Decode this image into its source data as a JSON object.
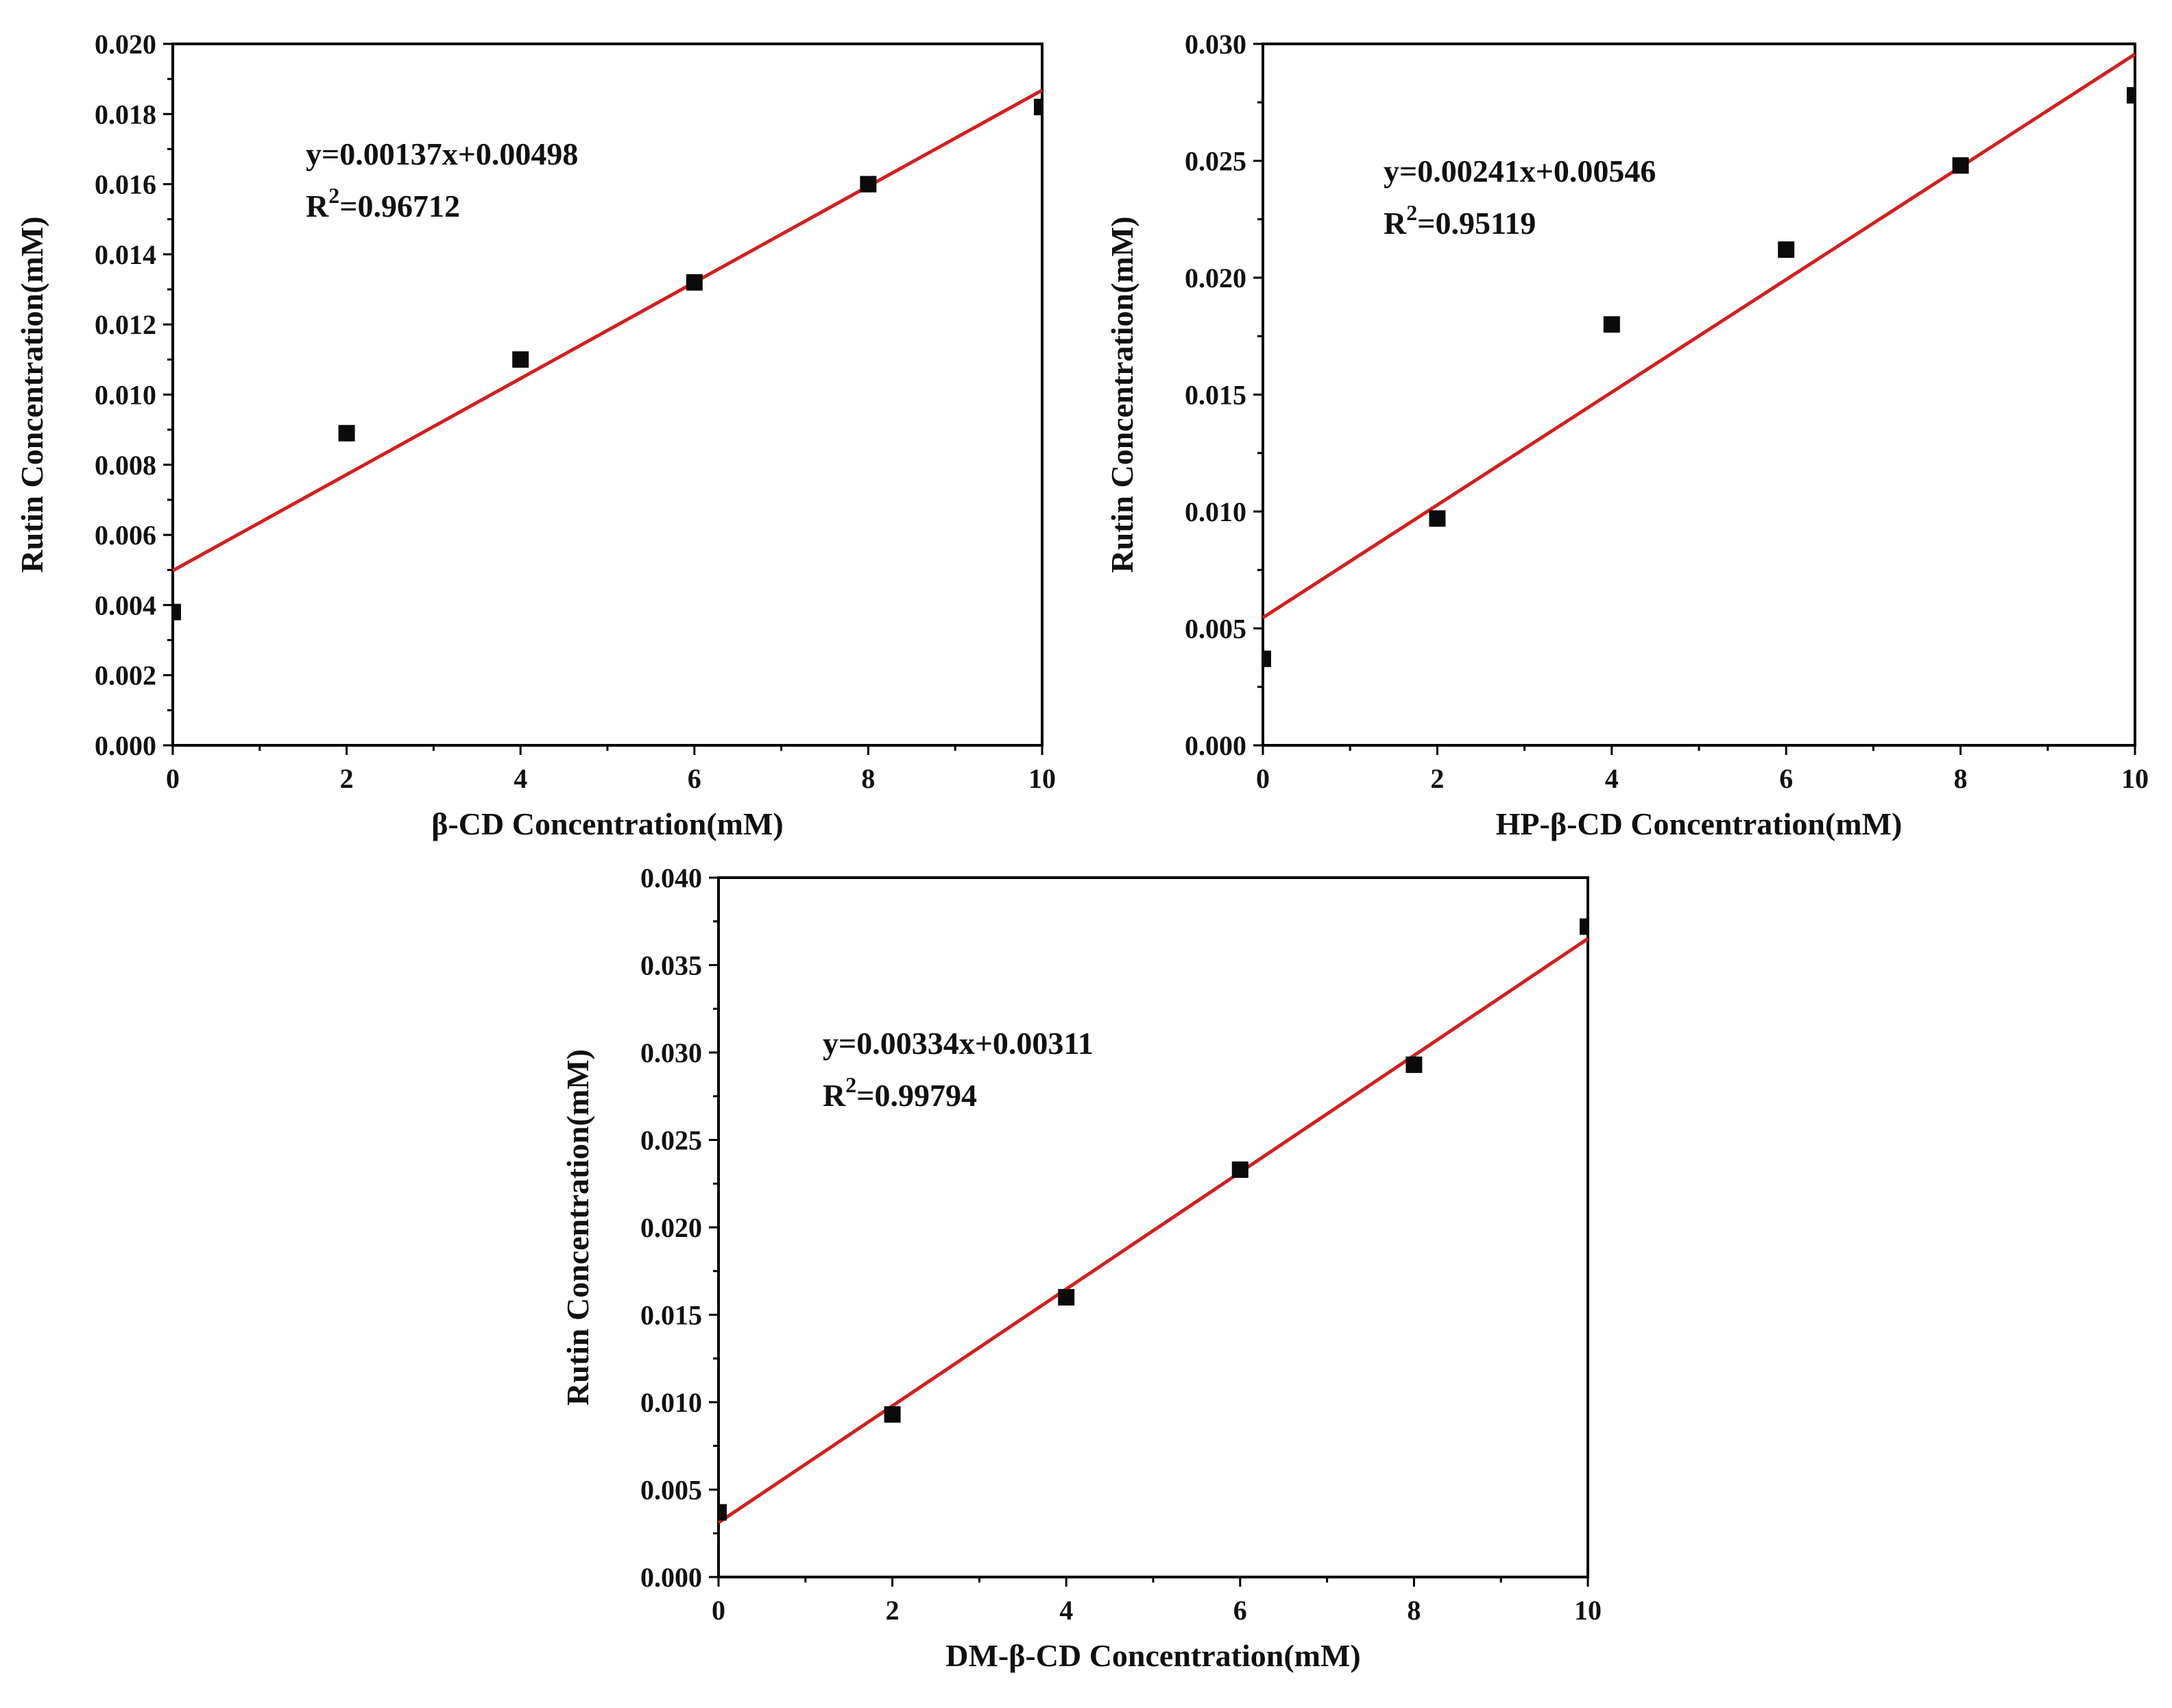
{
  "chart_data": [
    {
      "type": "scatter",
      "xlabel": "β-CD Concentration(mM)",
      "ylabel": "Rutin Concentration(mM)",
      "xlim": [
        0,
        10
      ],
      "ylim": [
        0,
        0.02
      ],
      "xticks": [
        "0",
        "2",
        "4",
        "6",
        "8",
        "10"
      ],
      "yticks": [
        "0.000",
        "0.002",
        "0.004",
        "0.006",
        "0.008",
        "0.010",
        "0.012",
        "0.014",
        "0.016",
        "0.018",
        "0.020"
      ],
      "series": [
        {
          "x": [
            0,
            2,
            4,
            6,
            8,
            10
          ],
          "y": [
            0.0038,
            0.0089,
            0.011,
            0.0132,
            0.016,
            0.0182
          ],
          "marker": "square",
          "color": "#000000"
        }
      ],
      "fit": {
        "slope": 0.00137,
        "intercept": 0.00498,
        "color": "#d41f1f"
      },
      "annotation": {
        "equation": "y=0.00137x+0.00498",
        "r2_label": "R",
        "r2_sup": "2",
        "r2_value": "=0.96712"
      }
    },
    {
      "type": "scatter",
      "xlabel": "HP-β-CD Concentration(mM)",
      "ylabel": "Rutin Concentration(mM)",
      "xlim": [
        0,
        10
      ],
      "ylim": [
        0,
        0.03
      ],
      "xticks": [
        "0",
        "2",
        "4",
        "6",
        "8",
        "10"
      ],
      "yticks": [
        "0.000",
        "0.005",
        "0.010",
        "0.015",
        "0.020",
        "0.025",
        "0.030"
      ],
      "series": [
        {
          "x": [
            0,
            2,
            4,
            6,
            8,
            10
          ],
          "y": [
            0.0037,
            0.0097,
            0.018,
            0.0212,
            0.0248,
            0.0278
          ],
          "marker": "square",
          "color": "#000000"
        }
      ],
      "fit": {
        "slope": 0.00241,
        "intercept": 0.00546,
        "color": "#d41f1f"
      },
      "annotation": {
        "equation": "y=0.00241x+0.00546",
        "r2_label": "R",
        "r2_sup": "2",
        "r2_value": "=0.95119"
      }
    },
    {
      "type": "scatter",
      "xlabel": "DM-β-CD Concentration(mM)",
      "ylabel": "Rutin Concentration(mM)",
      "xlim": [
        0,
        10
      ],
      "ylim": [
        0,
        0.04
      ],
      "xticks": [
        "0",
        "2",
        "4",
        "6",
        "8",
        "10"
      ],
      "yticks": [
        "0.000",
        "0.005",
        "0.010",
        "0.015",
        "0.020",
        "0.025",
        "0.030",
        "0.035",
        "0.040"
      ],
      "series": [
        {
          "x": [
            0,
            2,
            4,
            6,
            8,
            10
          ],
          "y": [
            0.0037,
            0.0093,
            0.016,
            0.0233,
            0.0293,
            0.0372
          ],
          "marker": "square",
          "color": "#000000"
        }
      ],
      "fit": {
        "slope": 0.00334,
        "intercept": 0.00311,
        "color": "#d41f1f"
      },
      "annotation": {
        "equation": "y=0.00334x+0.00311",
        "r2_label": "R",
        "r2_sup": "2",
        "r2_value": "=0.99794"
      }
    }
  ]
}
